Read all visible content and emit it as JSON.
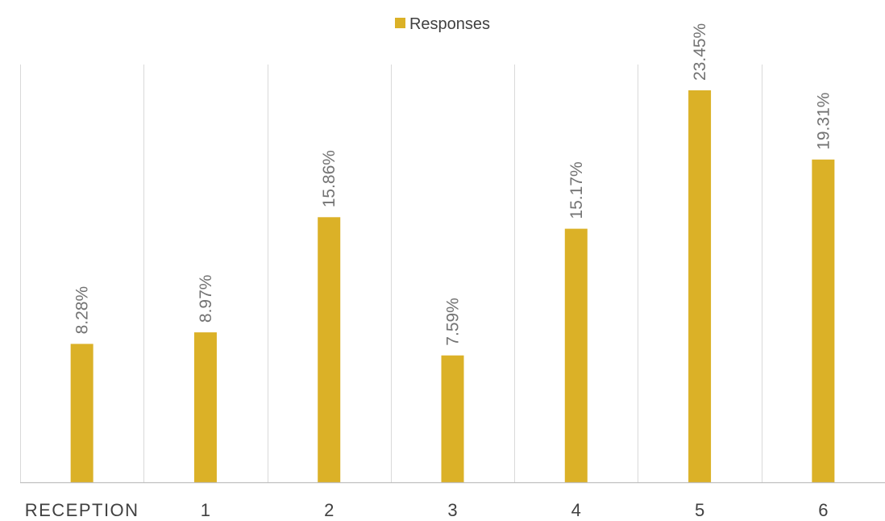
{
  "chart_data": {
    "type": "bar",
    "categories": [
      "RECEPTION",
      "1",
      "2",
      "3",
      "4",
      "5",
      "6"
    ],
    "series": [
      {
        "name": "Responses",
        "values": [
          8.28,
          8.97,
          15.86,
          7.59,
          15.17,
          23.45,
          19.31
        ],
        "labels": [
          "8.28%",
          "8.97%",
          "15.86%",
          "7.59%",
          "15.17%",
          "23.45%",
          "19.31%"
        ]
      }
    ],
    "ylim": [
      0,
      23.45
    ],
    "legend_position": "top-center",
    "grid": "vertical category separators",
    "colors": {
      "bar": "#DBB127",
      "gridline": "#D9D9D9",
      "axis": "#BFBFBF"
    }
  }
}
